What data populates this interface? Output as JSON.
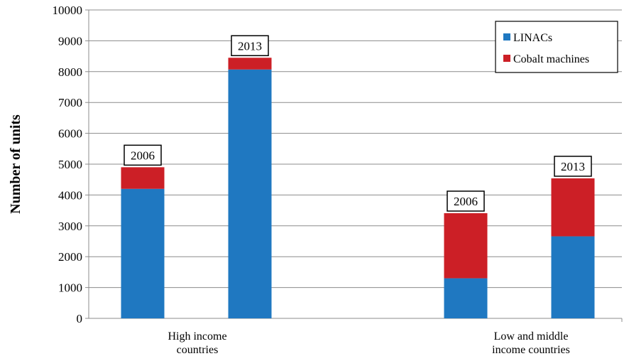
{
  "chart_data": {
    "type": "bar",
    "stacked": true,
    "title": "",
    "xlabel": "",
    "ylabel": "Number of units",
    "ylim": [
      0,
      10000
    ],
    "yticks": [
      0,
      1000,
      2000,
      3000,
      4000,
      5000,
      6000,
      7000,
      8000,
      9000,
      10000
    ],
    "grid": true,
    "legend_position": "top-right",
    "groups": [
      {
        "label_lines": [
          "High income",
          "countries"
        ],
        "bars": [
          {
            "year": "2006",
            "LINACs": 4200,
            "Cobalt machines": 700
          },
          {
            "year": "2013",
            "LINACs": 8070,
            "Cobalt machines": 380
          }
        ]
      },
      {
        "label_lines": [
          "Low and middle",
          "income countries"
        ],
        "bars": [
          {
            "year": "2006",
            "LINACs": 1300,
            "Cobalt machines": 2110
          },
          {
            "year": "2013",
            "LINACs": 2660,
            "Cobalt machines": 1880
          }
        ]
      }
    ],
    "series": [
      {
        "name": "LINACs",
        "color": "#1f78c1"
      },
      {
        "name": "Cobalt machines",
        "color": "#cc1f26"
      }
    ]
  }
}
